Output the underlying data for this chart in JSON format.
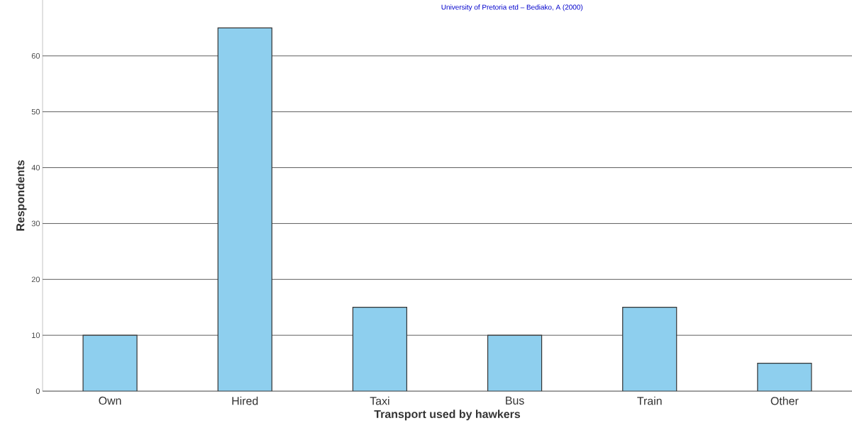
{
  "chart_data": {
    "type": "bar",
    "xlabel": "Transport used by hawkers",
    "ylabel": "Respondents",
    "categories": [
      "Own",
      "Hired",
      "Taxi",
      "Bus",
      "Train",
      "Other"
    ],
    "values": [
      10,
      65,
      15,
      10,
      15,
      5
    ],
    "color": "#8ecfee",
    "ylim": [
      0,
      70
    ],
    "yticks": [
      0,
      10,
      20,
      30,
      40,
      50,
      60
    ],
    "grid": "y",
    "annotations": [
      "University of Pretoria etd – Bediako, A  (2000)"
    ]
  }
}
